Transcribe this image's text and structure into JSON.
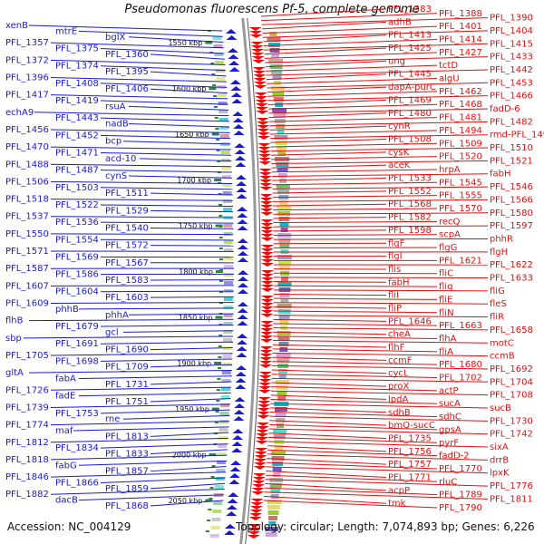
{
  "title": "Pseudomonas fluorescens Pf-5, complete genome",
  "accession": "Accession: NC_004129",
  "summary": "Topology: circular; Length: 7,074,893 bp; Genes: 6,226",
  "colors": {
    "left_labels": "#1a1ad0",
    "right_labels": "#e01010",
    "backbone": "#999999",
    "ticks": "#2c8a2c"
  },
  "scale_ticks": [
    "1550 kbp",
    "1600 kbp",
    "1650 kbp",
    "1700 kbp",
    "1750 kbp",
    "1800 kbp",
    "1850 kbp",
    "1900 kbp",
    "1950 kbp",
    "2000 kbp",
    "2050 kbp"
  ],
  "left_labels": [
    "xenB",
    "mtrE",
    "bglX",
    "PFL_1357",
    "PFL_1375",
    "PFL_1360",
    "PFL_1372",
    "PFL_1374",
    "PFL_1395",
    "PFL_1396",
    "PFL_1408",
    "PFL_1406",
    "PFL_1417",
    "PFL_1419",
    "rsuA",
    "echA9",
    "PFL_1443",
    "nadB",
    "PFL_1456",
    "PFL_1452",
    "bcp",
    "PFL_1470",
    "PFL_1471",
    "acd-10",
    "PFL_1488",
    "PFL_1487",
    "cynS",
    "PFL_1506",
    "PFL_1503",
    "PFL_1511",
    "PFL_1518",
    "PFL_1522",
    "PFL_1529",
    "PFL_1537",
    "PFL_1536",
    "PFL_1540",
    "PFL_1550",
    "PFL_1554",
    "PFL_1572",
    "PFL_1571",
    "PFL_1569",
    "PFL_1567",
    "PFL_1587",
    "PFL_1586",
    "PFL_1583",
    "PFL_1607",
    "PFL_1604",
    "PFL_1603",
    "PFL_1609",
    "phhB",
    "phhA",
    "flhB",
    "PFL_1679",
    "gcl",
    "sbp",
    "PFL_1691",
    "PFL_1690",
    "PFL_1705",
    "PFL_1698",
    "PFL_1709",
    "gltA",
    "fabA",
    "PFL_1731",
    "PFL_1726",
    "fadE",
    "PFL_1751",
    "PFL_1739",
    "PFL_1753",
    "rne",
    "PFL_1774",
    "maf",
    "PFL_1813",
    "PFL_1812",
    "PFL_1834",
    "PFL_1833",
    "PFL_1818",
    "fabG",
    "PFL_1857",
    "PFL_1846",
    "PFL_1866",
    "PFL_1859",
    "PFL_1882",
    "dacB",
    "PFL_1868"
  ],
  "right_labels": [
    "PFL_1383",
    "PFL_1388",
    "PFL_1390",
    "adhB",
    "PFL_1401",
    "PFL_1404",
    "PFL_1413",
    "PFL_1414",
    "PFL_1415",
    "PFL_1425",
    "PFL_1427",
    "PFL_1433",
    "ung",
    "tctD",
    "PFL_1442",
    "PFL_1445",
    "algU",
    "PFL_1453",
    "dapA-purC",
    "PFL_1462",
    "PFL_1466",
    "PFL_1469",
    "PFL_1468",
    "fadD-6",
    "PFL_1480",
    "PFL_1481",
    "PFL_1482",
    "cynR",
    "PFL_1494",
    "rmd-PFL_1496",
    "PFL_1508",
    "PFL_1509",
    "PFL_1510",
    "cysK",
    "PFL_1520",
    "PFL_1521",
    "aceK",
    "hrpA",
    "fabH",
    "PFL_1533",
    "PFL_1545",
    "PFL_1546",
    "PFL_1552",
    "PFL_1555",
    "PFL_1566",
    "PFL_1568",
    "PFL_1570",
    "PFL_1580",
    "PFL_1582",
    "recQ",
    "PFL_1597",
    "PFL_1598",
    "scpA",
    "phhR",
    "flgF",
    "flgG",
    "flgH",
    "flgI",
    "PFL_1621",
    "PFL_1622",
    "flis",
    "fliC",
    "PFL_1633",
    "fabH",
    "fliq",
    "fliG",
    "fliI",
    "fliE",
    "fleS",
    "fliP",
    "fliN",
    "fliR",
    "PFL_1646",
    "PFL_1663",
    "PFL_1658",
    "cheA",
    "flhA",
    "motC",
    "flhF",
    "fliA",
    "ccmB",
    "ccmF",
    "PFL_1680",
    "PFL_1692",
    "cycL",
    "PFL_1702",
    "PFL_1704",
    "proX",
    "actP",
    "PFL_1708",
    "lpdA",
    "sucA",
    "sucB",
    "sdhB",
    "sdhC",
    "PFL_1730",
    "bmQ-sucC",
    "gpsA",
    "PFL_1742",
    "PFL_1735",
    "pyrF",
    "sixA",
    "PFL_1756",
    "fadD-2",
    "drrB",
    "PFL_1757",
    "PFL_1770",
    "lpxK",
    "PFL_1771",
    "rluC",
    "PFL_1776",
    "acpP",
    "PFL_1789",
    "PFL_1811",
    "tmk",
    "PFL_1790"
  ]
}
